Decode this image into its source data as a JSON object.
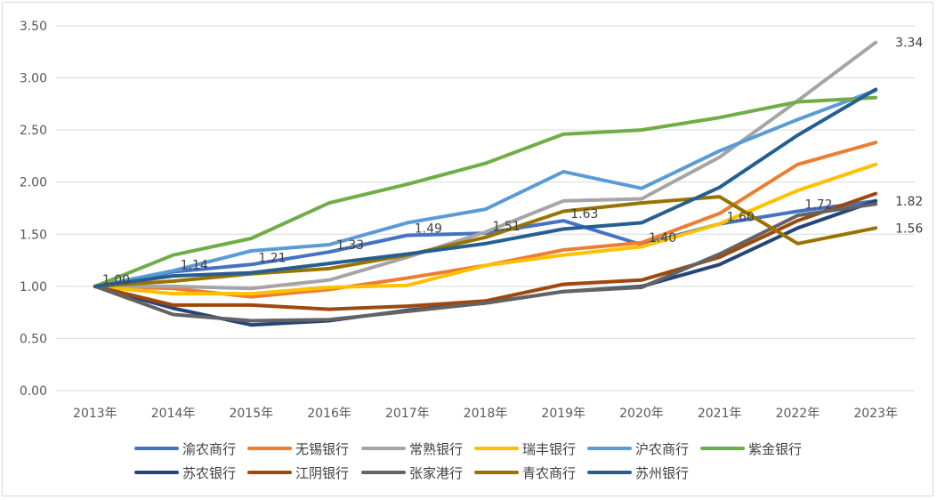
{
  "chart_data": {
    "type": "line",
    "title": "",
    "xlabel": "",
    "ylabel": "",
    "ylim": [
      0,
      3.5
    ],
    "y_ticks": [
      "0.00",
      "0.50",
      "1.00",
      "1.50",
      "2.00",
      "2.50",
      "3.00",
      "3.50"
    ],
    "categories": [
      "2013年",
      "2014年",
      "2015年",
      "2016年",
      "2017年",
      "2018年",
      "2019年",
      "2020年",
      "2021年",
      "2022年",
      "2023年"
    ],
    "grid": "horizontal",
    "legend_position": "bottom",
    "series": [
      {
        "name": "渝农商行",
        "color": "#4472c4",
        "values": [
          1.0,
          1.14,
          1.21,
          1.33,
          1.49,
          1.51,
          1.63,
          1.4,
          1.6,
          1.72,
          1.82
        ],
        "labels": [
          "1.00",
          "1.14",
          "1.21",
          "1.33",
          "1.49",
          "1.51",
          "1.63",
          "1.40",
          "1.60",
          "1.72",
          "1.82"
        ]
      },
      {
        "name": "无锡银行",
        "color": "#ed7d31",
        "values": [
          1.0,
          0.98,
          0.9,
          0.97,
          1.08,
          1.2,
          1.35,
          1.42,
          1.7,
          2.17,
          2.38
        ]
      },
      {
        "name": "常熟银行",
        "color": "#a5a5a5",
        "values": [
          1.0,
          1.0,
          0.98,
          1.06,
          1.28,
          1.52,
          1.82,
          1.84,
          2.24,
          2.78,
          3.34
        ],
        "labels": [
          "",
          "",
          "",
          "",
          "",
          "",
          "",
          "",
          "",
          "",
          "3.34"
        ]
      },
      {
        "name": "瑞丰银行",
        "color": "#ffc000",
        "values": [
          1.0,
          0.93,
          0.93,
          0.99,
          1.01,
          1.2,
          1.3,
          1.38,
          1.6,
          1.92,
          2.17
        ]
      },
      {
        "name": "沪农商行",
        "color": "#5b9bd5",
        "values": [
          1.0,
          1.15,
          1.34,
          1.4,
          1.61,
          1.74,
          2.1,
          1.94,
          2.3,
          2.6,
          2.88
        ]
      },
      {
        "name": "紫金银行",
        "color": "#70ad47",
        "values": [
          1.0,
          1.3,
          1.46,
          1.8,
          1.98,
          2.18,
          2.46,
          2.5,
          2.62,
          2.77,
          2.81
        ]
      },
      {
        "name": "苏农银行",
        "color": "#264478",
        "values": [
          1.0,
          0.79,
          0.63,
          0.67,
          0.77,
          0.84,
          0.95,
          1.0,
          1.21,
          1.56,
          1.82
        ]
      },
      {
        "name": "江阴银行",
        "color": "#9e480e",
        "values": [
          1.0,
          0.82,
          0.82,
          0.78,
          0.81,
          0.86,
          1.02,
          1.06,
          1.28,
          1.63,
          1.89
        ]
      },
      {
        "name": "张家港行",
        "color": "#636363",
        "values": [
          1.0,
          0.73,
          0.67,
          0.68,
          0.76,
          0.84,
          0.95,
          0.99,
          1.31,
          1.68,
          1.79
        ]
      },
      {
        "name": "青农商行",
        "color": "#997300",
        "values": [
          1.0,
          1.05,
          1.12,
          1.17,
          1.3,
          1.47,
          1.72,
          1.8,
          1.86,
          1.41,
          1.56
        ],
        "labels": [
          "",
          "",
          "",
          "",
          "",
          "",
          "",
          "",
          "",
          "",
          "1.56"
        ]
      },
      {
        "name": "苏州银行",
        "color": "#255e91",
        "values": [
          1.0,
          1.1,
          1.13,
          1.22,
          1.31,
          1.41,
          1.55,
          1.61,
          1.95,
          2.45,
          2.89
        ]
      }
    ]
  }
}
